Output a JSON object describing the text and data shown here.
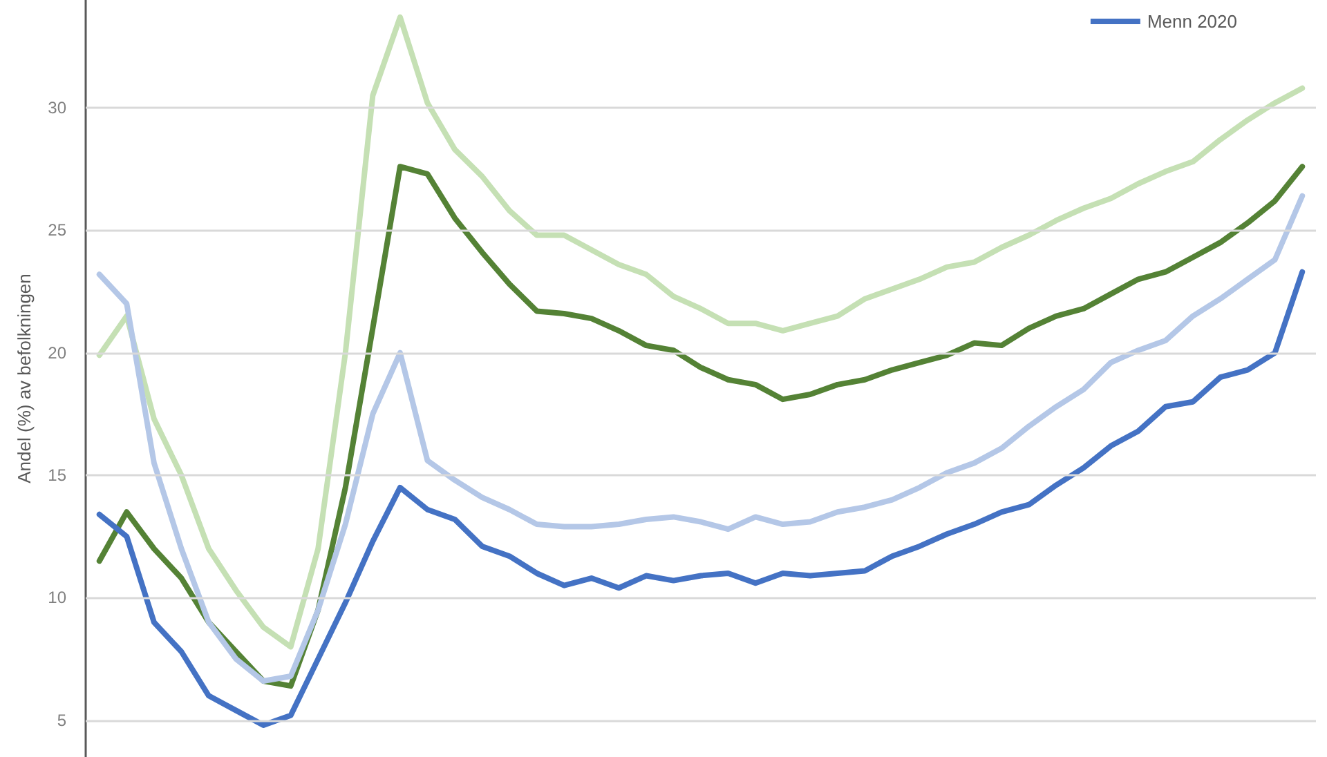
{
  "chart_data": {
    "type": "line",
    "ylabel": "Andel (%) av befolkningen",
    "categories": [
      null,
      null,
      null,
      null,
      null,
      null,
      null,
      null,
      null,
      null,
      null,
      null,
      null,
      null,
      null,
      null,
      null,
      null,
      null,
      null,
      null,
      null,
      null,
      null,
      null,
      null,
      null,
      null,
      null,
      null,
      null,
      null,
      null,
      null,
      null,
      null,
      null,
      null,
      null,
      null,
      null,
      null,
      null,
      null,
      null
    ],
    "ylim": [
      3.5,
      34.4
    ],
    "yticks": [
      5,
      10,
      15,
      20,
      25,
      30
    ],
    "grid": "y",
    "legend": "top right",
    "tick_labels": "y",
    "marker": "none",
    "line_style": "solid",
    "series": [
      {
        "color": "#c5e0b4",
        "values": [
          19.9,
          21.5,
          17.3,
          15.0,
          12.0,
          10.3,
          8.8,
          8.0,
          12.0,
          20.0,
          30.5,
          33.7,
          30.2,
          28.3,
          27.2,
          25.8,
          24.8,
          24.8,
          24.2,
          23.6,
          23.2,
          22.3,
          21.8,
          21.2,
          21.2,
          20.9,
          21.2,
          21.5,
          22.2,
          22.6,
          23.0,
          23.5,
          23.7,
          24.3,
          24.8,
          25.4,
          25.9,
          26.3,
          26.9,
          27.4,
          27.8,
          28.7,
          29.5,
          30.2,
          30.8
        ]
      },
      {
        "color": "#548235",
        "values": [
          11.5,
          13.5,
          12.0,
          10.8,
          9.0,
          7.8,
          6.6,
          6.4,
          9.5,
          14.5,
          21.0,
          27.6,
          27.3,
          25.5,
          24.1,
          22.8,
          21.7,
          21.6,
          21.4,
          20.9,
          20.3,
          20.1,
          19.4,
          18.9,
          18.7,
          18.1,
          18.3,
          18.7,
          18.9,
          19.3,
          19.6,
          19.9,
          20.4,
          20.3,
          21.0,
          21.5,
          21.8,
          22.4,
          23.0,
          23.3,
          23.9,
          24.5,
          25.3,
          26.2,
          27.6
        ]
      },
      {
        "color": "#b4c7e7",
        "values": [
          23.2,
          22.0,
          15.5,
          12.0,
          9.0,
          7.5,
          6.6,
          6.8,
          9.5,
          13.0,
          17.5,
          20.0,
          15.6,
          14.8,
          14.1,
          13.6,
          13.0,
          12.9,
          12.9,
          13.0,
          13.2,
          13.3,
          13.1,
          12.8,
          13.3,
          13.0,
          13.1,
          13.5,
          13.7,
          14.0,
          14.5,
          15.1,
          15.5,
          16.1,
          17.0,
          17.8,
          18.5,
          19.6,
          20.1,
          20.5,
          21.5,
          22.2,
          23.0,
          23.8,
          26.4
        ]
      },
      {
        "name": "Menn 2020",
        "color": "#4472c4",
        "values": [
          13.4,
          12.5,
          9.0,
          7.8,
          6.0,
          5.4,
          4.8,
          5.2,
          7.5,
          9.8,
          12.3,
          14.5,
          13.6,
          13.2,
          12.1,
          11.7,
          11.0,
          10.5,
          10.8,
          10.4,
          10.9,
          10.7,
          10.9,
          11.0,
          10.6,
          11.0,
          10.9,
          11.0,
          11.1,
          11.7,
          12.1,
          12.6,
          13.0,
          13.5,
          13.8,
          14.6,
          15.3,
          16.2,
          16.8,
          17.8,
          18.0,
          19.0,
          19.3,
          20.0,
          23.3
        ]
      }
    ]
  }
}
